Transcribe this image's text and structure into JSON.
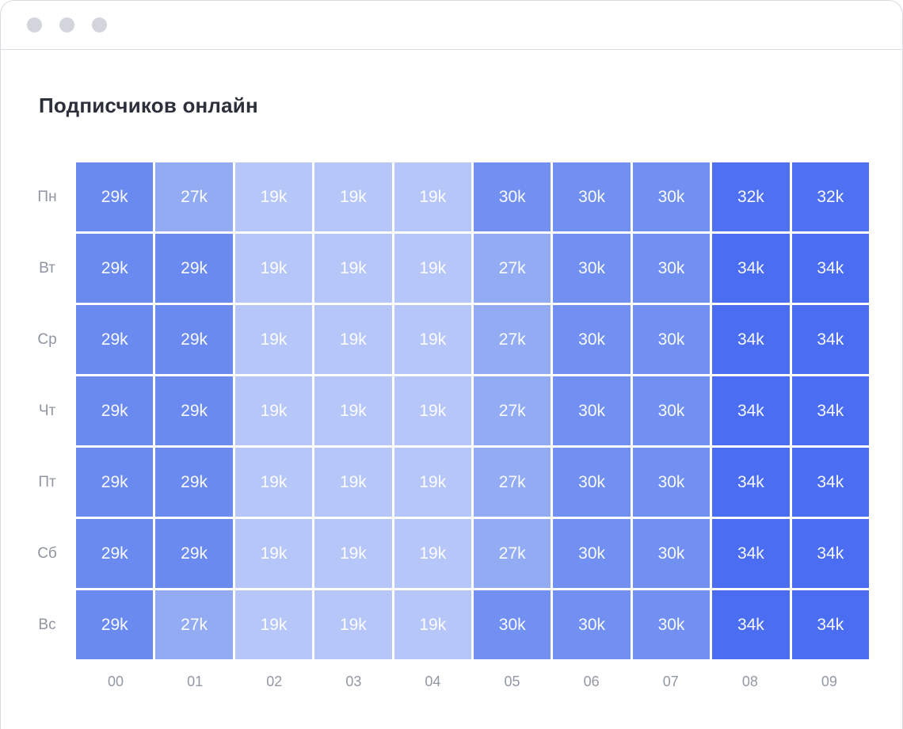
{
  "window": {
    "kind": "browser-window-mock",
    "controls_color": "#d2d5dc",
    "border_color": "#d8dbe2"
  },
  "chart_data": {
    "type": "heatmap",
    "title": "Подписчиков онлайн",
    "rows": [
      "Пн",
      "Вт",
      "Ср",
      "Чт",
      "Пт",
      "Сб",
      "Вс"
    ],
    "columns": [
      "00",
      "01",
      "02",
      "03",
      "04",
      "05",
      "06",
      "07",
      "08",
      "09"
    ],
    "unit": "тыс. (k)",
    "values_thousands": [
      [
        29,
        27,
        19,
        19,
        19,
        30,
        30,
        30,
        32,
        32
      ],
      [
        29,
        29,
        19,
        19,
        19,
        27,
        30,
        30,
        34,
        34
      ],
      [
        29,
        29,
        19,
        19,
        19,
        27,
        30,
        30,
        34,
        34
      ],
      [
        29,
        29,
        19,
        19,
        19,
        27,
        30,
        30,
        34,
        34
      ],
      [
        29,
        29,
        19,
        19,
        19,
        27,
        30,
        30,
        34,
        34
      ],
      [
        29,
        29,
        19,
        19,
        19,
        27,
        30,
        30,
        34,
        34
      ],
      [
        29,
        27,
        19,
        19,
        19,
        30,
        30,
        30,
        34,
        34
      ]
    ],
    "cell_labels": [
      [
        "29k",
        "27k",
        "19k",
        "19k",
        "19k",
        "30k",
        "30k",
        "30k",
        "32k",
        "32k"
      ],
      [
        "29k",
        "29k",
        "19k",
        "19k",
        "19k",
        "27k",
        "30k",
        "30k",
        "34k",
        "34k"
      ],
      [
        "29k",
        "29k",
        "19k",
        "19k",
        "19k",
        "27k",
        "30k",
        "30k",
        "34k",
        "34k"
      ],
      [
        "29k",
        "29k",
        "19k",
        "19k",
        "19k",
        "27k",
        "30k",
        "30k",
        "34k",
        "34k"
      ],
      [
        "29k",
        "29k",
        "19k",
        "19k",
        "19k",
        "27k",
        "30k",
        "30k",
        "34k",
        "34k"
      ],
      [
        "29k",
        "29k",
        "19k",
        "19k",
        "19k",
        "27k",
        "30k",
        "30k",
        "34k",
        "34k"
      ],
      [
        "29k",
        "27k",
        "19k",
        "19k",
        "19k",
        "30k",
        "30k",
        "30k",
        "34k",
        "34k"
      ]
    ],
    "palette": {
      "19k": "#b7c6f8",
      "27k": "#92abf3",
      "29k": "#6b8af0",
      "30k": "#7190f2",
      "32k": "#4e70f1",
      "34k": "#4a6df1"
    },
    "cell_text_color": "#ffffff",
    "axis_label_color": "#9298a4",
    "grid_gap_color": "#ffffff",
    "legend": "none",
    "layout": {
      "rows_axis": "left",
      "columns_axis": "bottom"
    }
  }
}
